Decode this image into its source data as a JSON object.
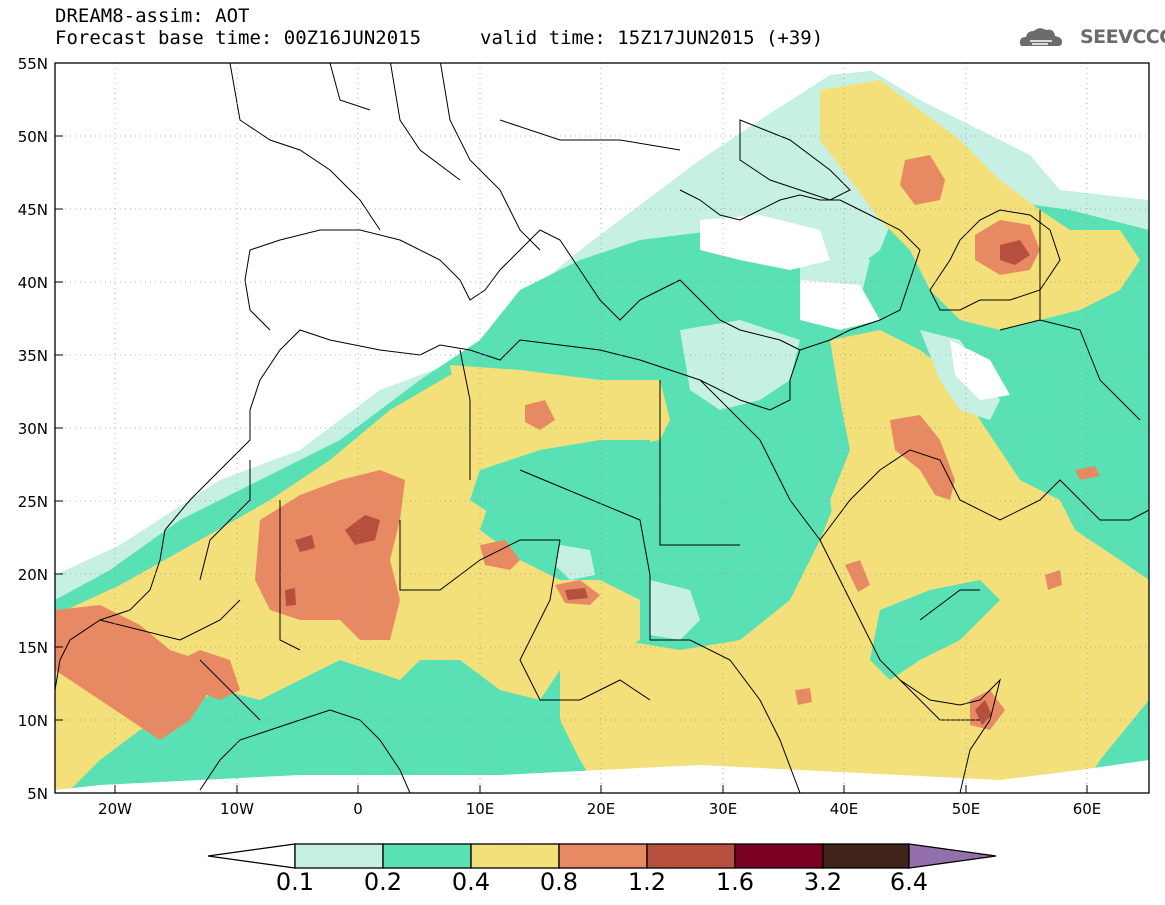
{
  "title": {
    "line1": "DREAM8-assim: AOT",
    "base_time": "Forecast base time: 00Z16JUN2015",
    "valid_time": "valid time: 15Z17JUN2015 (+39)"
  },
  "logo": {
    "text": "SEEVCCC",
    "icon": "cloud-icon"
  },
  "map": {
    "lon_range": [
      -25,
      65
    ],
    "lat_range": [
      5,
      55
    ],
    "lat_labels": [
      "55N",
      "50N",
      "45N",
      "40N",
      "35N",
      "30N",
      "25N",
      "20N",
      "15N",
      "10N",
      "5N"
    ],
    "lon_labels": [
      "20W",
      "10W",
      "0",
      "10E",
      "20E",
      "30E",
      "40E",
      "50E",
      "60E"
    ]
  },
  "colorbar": {
    "levels": [
      "0.1",
      "0.2",
      "0.4",
      "0.8",
      "1.2",
      "1.6",
      "3.2",
      "6.4"
    ],
    "colors": [
      "#ffffff",
      "#c7f0e4",
      "#59e0b4",
      "#f4e07a",
      "#e78a64",
      "#b64f3e",
      "#7a0021",
      "#40241a",
      "#9370ac"
    ]
  }
}
